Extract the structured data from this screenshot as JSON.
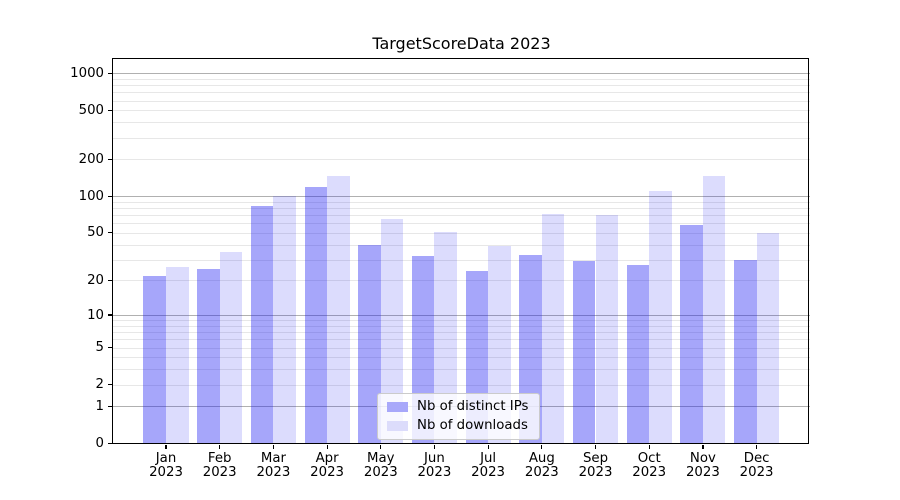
{
  "chart_data": {
    "type": "bar",
    "title": "TargetScoreData 2023",
    "categories": [
      "Jan 2023",
      "Feb 2023",
      "Mar 2023",
      "Apr 2023",
      "May 2023",
      "Jun 2023",
      "Jul 2023",
      "Aug 2023",
      "Sep 2023",
      "Oct 2023",
      "Nov 2023",
      "Dec 2023"
    ],
    "series": [
      {
        "name": "Nb of distinct IPs",
        "color": "#a8a8fa",
        "fill": "rgba(21,21,242,0.38)",
        "values": [
          22,
          25,
          83,
          120,
          40,
          32,
          24,
          33,
          29,
          27,
          58,
          30
        ]
      },
      {
        "name": "Nb of downloads",
        "color": "#dcdcfb",
        "fill": "rgba(21,21,242,0.15)",
        "values": [
          26,
          35,
          100,
          145,
          65,
          51,
          39,
          71,
          70,
          110,
          145,
          50
        ]
      }
    ],
    "yscale": "log1p",
    "y_ticks": [
      0,
      1,
      2,
      5,
      10,
      20,
      50,
      100,
      200,
      500,
      1000
    ],
    "ylim": [
      0,
      1300
    ],
    "xlabel": "",
    "ylabel": "",
    "grid": true,
    "grid_major_ticks": [
      1,
      10,
      100,
      1000
    ],
    "grid_major_color": "#b0b0b0",
    "grid_minor_color": "#e7e7e7",
    "legend_position": "lower center",
    "axis_color": "#000000",
    "background_color": "#ffffff"
  }
}
